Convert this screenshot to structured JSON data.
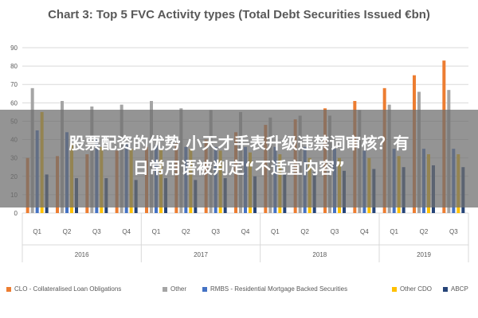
{
  "chart_data": {
    "type": "bar",
    "title": "Chart 3: Top 5 FVC Activity types (Total Debt Securities Issued €bn)",
    "ylim": [
      0,
      90
    ],
    "yticks": [
      0,
      10,
      20,
      30,
      40,
      50,
      60,
      70,
      80,
      90
    ],
    "grid": true,
    "legend_position": "bottom",
    "categories": [
      "Q1",
      "Q2",
      "Q3",
      "Q4",
      "Q1",
      "Q2",
      "Q3",
      "Q4",
      "Q1",
      "Q2",
      "Q3",
      "Q4",
      "Q1",
      "Q2",
      "Q3"
    ],
    "groups": [
      {
        "label": "2016",
        "count": 4
      },
      {
        "label": "2017",
        "count": 4
      },
      {
        "label": "2018",
        "count": 4
      },
      {
        "label": "2019",
        "count": 3
      }
    ],
    "series": [
      {
        "name": "CLO - Collateralised Loan Obligations",
        "color": "#ED7D31",
        "values": [
          30,
          31,
          32,
          34,
          36,
          38,
          40,
          44,
          48,
          51,
          57,
          61,
          68,
          75,
          83
        ]
      },
      {
        "name": "Other",
        "color": "#A5A5A5",
        "values": [
          68,
          61,
          58,
          59,
          61,
          57,
          56,
          55,
          52,
          53,
          53,
          56,
          59,
          66,
          67
        ]
      },
      {
        "name": "RMBS - Residential Mortgage Backed Securities",
        "color": "#4472C4",
        "values": [
          45,
          44,
          40,
          38,
          37,
          36,
          36,
          36,
          36,
          36,
          35,
          34,
          35,
          35,
          35
        ]
      },
      {
        "name": "Other CDO",
        "color": "#FFC000",
        "values": [
          55,
          38,
          36,
          35,
          35,
          35,
          34,
          33,
          32,
          30,
          30,
          30,
          31,
          32,
          32
        ]
      },
      {
        "name": "ABCP",
        "color": "#264478",
        "values": [
          21,
          19,
          19,
          18,
          19,
          18,
          19,
          20,
          21,
          22,
          23,
          24,
          25,
          26,
          25
        ]
      }
    ]
  },
  "overlay": {
    "line1": "股票配资的优势 小天才手表升级违禁词审核？有",
    "line2": "日常用语被判定“不适宜内容”"
  }
}
